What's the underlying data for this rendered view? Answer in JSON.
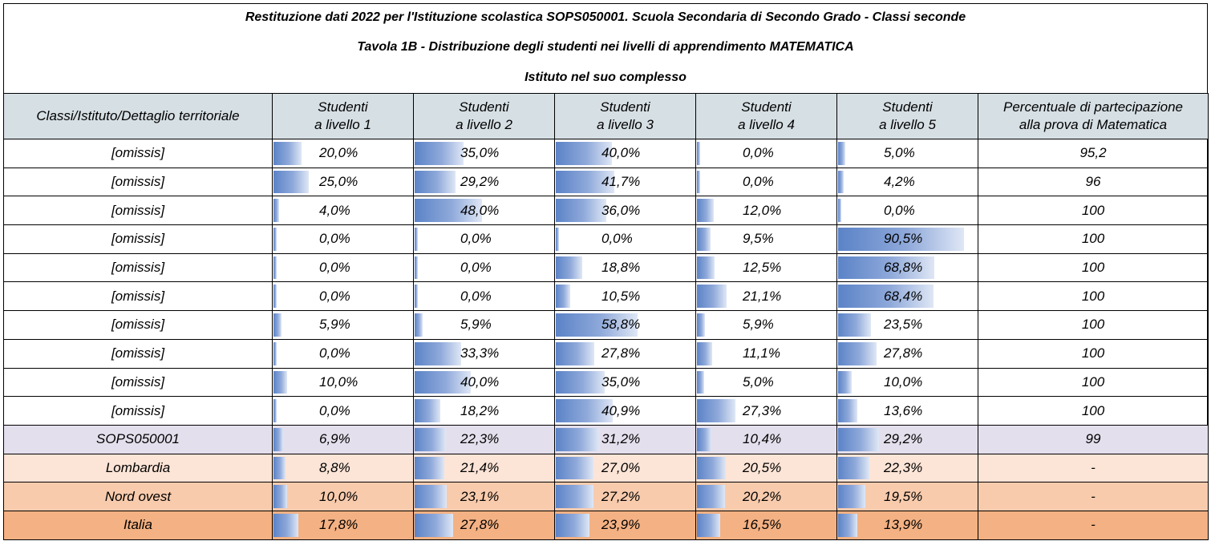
{
  "titles": {
    "line1": "Restituzione dati 2022 per l'Istituzione scolastica SOPS050001. Scuola Secondaria di Secondo Grado - Classi seconde",
    "line2": "Tavola 1B - Distribuzione degli studenti nei livelli di apprendimento MATEMATICA",
    "line3": "Istituto nel suo complesso"
  },
  "headers": {
    "col0": "Classi/Istituto/Dettaglio territoriale",
    "l1a": "Studenti",
    "l1b": "a livello 1",
    "l2a": "Studenti",
    "l2b": "a livello 2",
    "l3a": "Studenti",
    "l3b": "a livello 3",
    "l4a": "Studenti",
    "l4b": "a livello 4",
    "l5a": "Studenti",
    "l5b": "a livello 5",
    "pa": "Percentuale di partecipazione",
    "pb": "alla prova di Matematica"
  },
  "rows": [
    {
      "name": "[omissis]",
      "kind": "class",
      "levels": [
        "20,0%",
        "35,0%",
        "40,0%",
        "0,0%",
        "5,0%"
      ],
      "fill": [
        20.0,
        35.0,
        40.0,
        0.0,
        5.0
      ],
      "part": "95,2"
    },
    {
      "name": "[omissis]",
      "kind": "class",
      "levels": [
        "25,0%",
        "29,2%",
        "41,7%",
        "0,0%",
        "4,2%"
      ],
      "fill": [
        25.0,
        29.2,
        41.7,
        0.0,
        4.2
      ],
      "part": "96"
    },
    {
      "name": "[omissis]",
      "kind": "class",
      "levels": [
        "4,0%",
        "48,0%",
        "36,0%",
        "12,0%",
        "0,0%"
      ],
      "fill": [
        4.0,
        48.0,
        36.0,
        12.0,
        0.0
      ],
      "part": "100"
    },
    {
      "name": "[omissis]",
      "kind": "class",
      "levels": [
        "0,0%",
        "0,0%",
        "0,0%",
        "9,5%",
        "90,5%"
      ],
      "fill": [
        0.0,
        0.0,
        0.0,
        9.5,
        90.5
      ],
      "part": "100"
    },
    {
      "name": "[omissis]",
      "kind": "class",
      "levels": [
        "0,0%",
        "0,0%",
        "18,8%",
        "12,5%",
        "68,8%"
      ],
      "fill": [
        0.0,
        0.0,
        18.8,
        12.5,
        68.8
      ],
      "part": "100"
    },
    {
      "name": "[omissis]",
      "kind": "class",
      "levels": [
        "0,0%",
        "0,0%",
        "10,5%",
        "21,1%",
        "68,4%"
      ],
      "fill": [
        0.0,
        0.0,
        10.5,
        21.1,
        68.4
      ],
      "part": "100"
    },
    {
      "name": "[omissis]",
      "kind": "class",
      "levels": [
        "5,9%",
        "5,9%",
        "58,8%",
        "5,9%",
        "23,5%"
      ],
      "fill": [
        5.9,
        5.9,
        58.8,
        5.9,
        23.5
      ],
      "part": "100"
    },
    {
      "name": "[omissis]",
      "kind": "class",
      "levels": [
        "0,0%",
        "33,3%",
        "27,8%",
        "11,1%",
        "27,8%"
      ],
      "fill": [
        0.0,
        33.3,
        27.8,
        11.1,
        27.8
      ],
      "part": "100"
    },
    {
      "name": "[omissis]",
      "kind": "class",
      "levels": [
        "10,0%",
        "40,0%",
        "35,0%",
        "5,0%",
        "10,0%"
      ],
      "fill": [
        10.0,
        40.0,
        35.0,
        5.0,
        10.0
      ],
      "part": "100"
    },
    {
      "name": "[omissis]",
      "kind": "class",
      "levels": [
        "0,0%",
        "18,2%",
        "40,9%",
        "27,3%",
        "13,6%"
      ],
      "fill": [
        0.0,
        18.2,
        40.9,
        27.3,
        13.6
      ],
      "part": "100"
    },
    {
      "name": "SOPS050001",
      "kind": "school",
      "levels": [
        "6,9%",
        "22,3%",
        "31,2%",
        "10,4%",
        "29,2%"
      ],
      "fill": [
        6.9,
        22.3,
        31.2,
        10.4,
        29.2
      ],
      "part": "99"
    },
    {
      "name": "Lombardia",
      "kind": "region",
      "levels": [
        "8,8%",
        "21,4%",
        "27,0%",
        "20,5%",
        "22,3%"
      ],
      "fill": [
        8.8,
        21.4,
        27.0,
        20.5,
        22.3
      ],
      "part": "-"
    },
    {
      "name": "Nord ovest",
      "kind": "area",
      "levels": [
        "10,0%",
        "23,1%",
        "27,2%",
        "20,2%",
        "19,5%"
      ],
      "fill": [
        10.0,
        23.1,
        27.2,
        20.2,
        19.5
      ],
      "part": "-"
    },
    {
      "name": "Italia",
      "kind": "nation",
      "levels": [
        "17,8%",
        "27,8%",
        "23,9%",
        "16,5%",
        "13,9%"
      ],
      "fill": [
        17.8,
        27.8,
        23.9,
        16.5,
        13.9
      ],
      "part": "-"
    }
  ]
}
